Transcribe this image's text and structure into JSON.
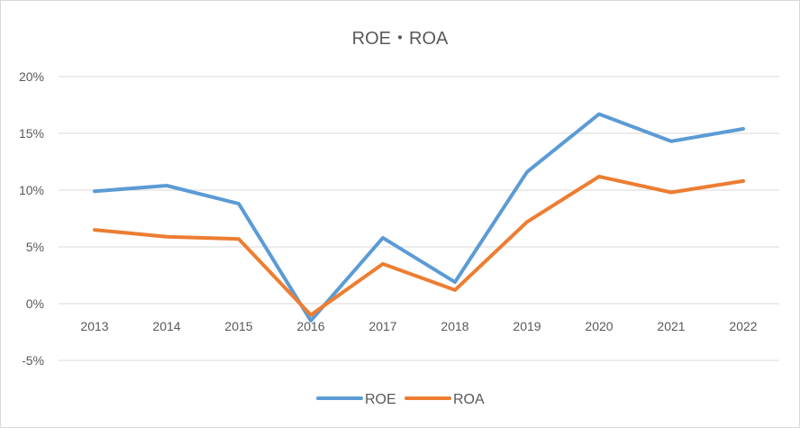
{
  "chart_data": {
    "type": "line",
    "title": "ROE・ROA",
    "xlabel": "",
    "ylabel": "",
    "categories": [
      "2013",
      "2014",
      "2015",
      "2016",
      "2017",
      "2018",
      "2019",
      "2020",
      "2021",
      "2022"
    ],
    "y_ticks": [
      "20%",
      "15%",
      "10%",
      "5%",
      "0%",
      "-5%"
    ],
    "ylim": [
      -5,
      20
    ],
    "y_unit": "%",
    "grid": true,
    "legend_position": "bottom",
    "series": [
      {
        "name": "ROE",
        "color": "#5b9bd5",
        "values": [
          9.9,
          10.4,
          8.8,
          -1.5,
          5.8,
          1.9,
          11.6,
          16.7,
          14.3,
          15.4
        ]
      },
      {
        "name": "ROA",
        "color": "#ed7d31",
        "values": [
          6.5,
          5.9,
          5.7,
          -1.0,
          3.5,
          1.2,
          7.2,
          11.2,
          9.8,
          10.8
        ]
      }
    ]
  }
}
